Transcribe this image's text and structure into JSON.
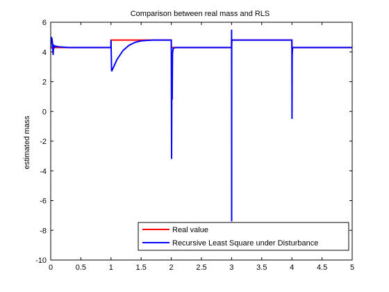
{
  "chart_data": {
    "type": "line",
    "title": "Comparison between real mass and RLS",
    "xlabel": "",
    "ylabel": "estimated mass",
    "xlim": [
      0,
      5
    ],
    "ylim": [
      -10,
      6
    ],
    "xticks": [
      0,
      0.5,
      1,
      1.5,
      2,
      2.5,
      3,
      3.5,
      4,
      4.5,
      5
    ],
    "xtick_labels": [
      "0",
      "0.5",
      "1",
      "1.5",
      "2",
      "2.5",
      "3",
      "3.5",
      "4",
      "4.5",
      "5"
    ],
    "yticks": [
      -10,
      -8,
      -6,
      -4,
      -2,
      0,
      2,
      4,
      6
    ],
    "ytick_labels": [
      "-10",
      "-8",
      "-6",
      "-4",
      "-2",
      "0",
      "2",
      "4",
      "6"
    ],
    "grid": false,
    "legend_position": "bottom-right",
    "series": [
      {
        "name": "Real value",
        "color": "#ff0000",
        "x": [
          0,
          0.999,
          1.0,
          1.999,
          2.0,
          2.999,
          3.0,
          3.999,
          4.0,
          5.0
        ],
        "y": [
          4.3,
          4.3,
          4.8,
          4.8,
          4.3,
          4.3,
          4.8,
          4.8,
          4.3,
          4.3
        ]
      },
      {
        "name": "Recursive Least Square under Disturbance",
        "color": "#0000ff",
        "x": [
          0,
          0.01,
          0.02,
          0.03,
          0.04,
          0.05,
          0.06,
          0.08,
          0.12,
          0.3,
          0.5,
          0.999,
          1.0,
          1.01,
          1.05,
          1.1,
          1.2,
          1.3,
          1.4,
          1.5,
          1.6,
          1.7,
          1.8,
          1.999,
          2.0,
          2.005,
          2.01,
          2.015,
          2.02,
          2.03,
          2.04,
          2.06,
          2.1,
          2.3,
          2.999,
          3.0,
          3.001,
          3.002,
          3.004,
          3.01,
          3.05,
          3.999,
          4.0,
          4.002,
          4.005,
          4.01,
          4.02,
          4.05,
          5.0
        ],
        "y": [
          4.2,
          5.0,
          4.9,
          4.6,
          3.8,
          4.5,
          4.3,
          4.4,
          4.35,
          4.3,
          4.3,
          4.3,
          4.8,
          2.7,
          3.05,
          3.5,
          4.1,
          4.45,
          4.65,
          4.75,
          4.78,
          4.8,
          4.8,
          4.8,
          4.8,
          -3.2,
          3.4,
          0.8,
          3.9,
          4.2,
          4.25,
          4.3,
          4.3,
          4.3,
          4.3,
          5.5,
          -7.4,
          4.4,
          4.8,
          4.8,
          4.8,
          4.8,
          4.8,
          -0.5,
          3.8,
          4.2,
          4.3,
          4.3,
          4.3
        ]
      }
    ]
  }
}
